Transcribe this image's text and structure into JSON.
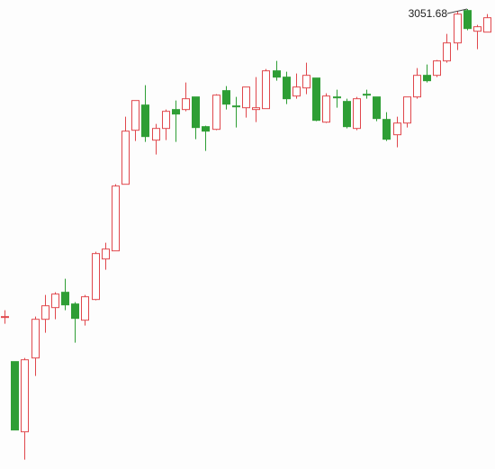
{
  "chart_data": {
    "type": "candlestick",
    "up_color": "#e0474c",
    "down_color": "#2e9e35",
    "ylim": [
      2540.68,
      3061.68
    ],
    "open": [
      2709,
      2660,
      2582,
      2664,
      2707,
      2720,
      2737,
      2724,
      2706,
      2729,
      2774,
      2783,
      2857,
      2917,
      2945,
      2906,
      2919,
      2940,
      2940,
      2954,
      2921,
      2918,
      2961,
      2944,
      2942,
      2940,
      2941,
      2983,
      2976,
      2955,
      2964,
      2975,
      2926,
      2954,
      2949,
      2919,
      2957,
      2954,
      2929,
      2912,
      2925,
      2954,
      2978,
      2978,
      2994,
      3014,
      3050,
      3027,
      3026
    ],
    "high": [
      2717,
      2660,
      2664,
      2710,
      2734,
      2737,
      2752,
      2726,
      2734,
      2782,
      2792,
      2857,
      2932,
      2950,
      2967,
      2924,
      2940,
      2950,
      2970,
      2954,
      2922,
      2957,
      2966,
      2954,
      2965,
      2976,
      2985,
      2994,
      2982,
      2980,
      2992,
      2975,
      2958,
      2962,
      2952,
      2954,
      2962,
      2954,
      2937,
      2932,
      2954,
      2986,
      2990,
      2995,
      3024,
      3049,
      3051.68,
      3034,
      3046
    ],
    "low": [
      2702,
      2584,
      2551,
      2644,
      2692,
      2707,
      2717,
      2681,
      2700,
      2728,
      2762,
      2783,
      2857,
      2905,
      2904,
      2890,
      2906,
      2904,
      2938,
      2907,
      2894,
      2917,
      2940,
      2920,
      2931,
      2926,
      2941,
      2972,
      2946,
      2952,
      2957,
      2927,
      2925,
      2942,
      2919,
      2917,
      2952,
      2927,
      2905,
      2898,
      2920,
      2952,
      2970,
      2976,
      2992,
      3006,
      3028,
      3007,
      3026
    ],
    "close": [
      2710,
      2584,
      2662,
      2707,
      2722,
      2735,
      2723,
      2708,
      2732,
      2780,
      2785,
      2855,
      2916,
      2950,
      2910,
      2919,
      2938,
      2935,
      2952,
      2920,
      2916,
      2956,
      2946,
      2943,
      2965,
      2942,
      2983,
      2976,
      2952,
      2965,
      2978,
      2928,
      2955,
      2953,
      2921,
      2952,
      2956,
      2930,
      2907,
      2925,
      2954,
      2978,
      2972,
      2994,
      3014,
      3046,
      3030,
      3032,
      3042
    ]
  }
}
